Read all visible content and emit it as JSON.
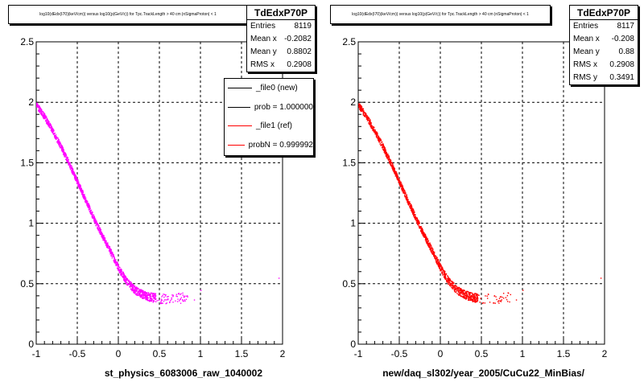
{
  "footer_text": "",
  "chart_data": [
    {
      "type": "scatter",
      "title": "log10(dEdx(I70)(keV/cm)) versus log10(p(GeV/c)) for Tpc.TrackLength > 40 cm |nSigmaProton| < 1",
      "xlabel": "st_physics_6083006_raw_1040002",
      "ylabel": "",
      "xlim": [
        -1,
        2
      ],
      "ylim": [
        0,
        2.5
      ],
      "x_ticks": [
        "-1",
        "-0.5",
        "0",
        "0.5",
        "1",
        "1.5",
        "2"
      ],
      "y_ticks": [
        "0",
        "0.5",
        "1",
        "1.5",
        "2",
        "2.5"
      ],
      "grid": true,
      "marker_color": "#ff00ff",
      "band": {
        "x": [
          -1.0,
          -0.9,
          -0.8,
          -0.7,
          -0.6,
          -0.5,
          -0.4,
          -0.3,
          -0.2,
          -0.1,
          0.0,
          0.1,
          0.2,
          0.3,
          0.4,
          0.5,
          0.6,
          0.7,
          0.85
        ],
        "y": [
          1.98,
          1.88,
          1.76,
          1.63,
          1.49,
          1.34,
          1.19,
          1.04,
          0.9,
          0.77,
          0.63,
          0.52,
          0.45,
          0.41,
          0.39,
          0.38,
          0.38,
          0.38,
          0.39
        ]
      },
      "outliers": [
        [
          1.0,
          0.45
        ],
        [
          1.95,
          0.55
        ],
        [
          0.92,
          0.37
        ],
        [
          0.78,
          0.41
        ]
      ],
      "stats": {
        "name": "TdEdxP70P",
        "rows": [
          {
            "label": "Entries",
            "value": "8119"
          },
          {
            "label": "Mean x",
            "value": "-0.2082"
          },
          {
            "label": "Mean y",
            "value": "0.8802"
          },
          {
            "label": "RMS x",
            "value": "0.2908"
          }
        ]
      },
      "legend": {
        "placement": "top-right",
        "entries": [
          {
            "label": "_file0 (new)",
            "color": "#000000"
          },
          {
            "label": "prob = 1.000000",
            "color": "#000000"
          },
          {
            "label": "_file1 (ref)",
            "color": "#ff0000"
          },
          {
            "label": "probN = 0.999992",
            "color": "#ff0000"
          }
        ]
      }
    },
    {
      "type": "scatter",
      "title": "log10(dEdx(I70)(keV/cm)) versus log10(p(GeV/c)) for Tpc.TrackLength > 40 cm |nSigmaProton| < 1",
      "xlabel": "new/daq_sl302/year_2005/CuCu22_MinBias/",
      "ylabel": "",
      "xlim": [
        -1,
        2
      ],
      "ylim": [
        0,
        2.5
      ],
      "x_ticks": [
        "-1",
        "-0.5",
        "0",
        "0.5",
        "1",
        "1.5",
        "2"
      ],
      "y_ticks": [
        "0",
        "0.5",
        "1",
        "1.5",
        "2",
        "2.5"
      ],
      "grid": true,
      "marker_color": "#ff0000",
      "band": {
        "x": [
          -1.0,
          -0.9,
          -0.8,
          -0.7,
          -0.6,
          -0.5,
          -0.4,
          -0.3,
          -0.2,
          -0.1,
          0.0,
          0.1,
          0.2,
          0.3,
          0.4,
          0.5,
          0.6,
          0.7,
          0.85
        ],
        "y": [
          1.98,
          1.88,
          1.76,
          1.63,
          1.49,
          1.34,
          1.19,
          1.04,
          0.9,
          0.77,
          0.63,
          0.52,
          0.45,
          0.41,
          0.39,
          0.38,
          0.38,
          0.38,
          0.39
        ]
      },
      "outliers": [
        [
          1.95,
          0.55
        ],
        [
          0.92,
          0.37
        ],
        [
          1.0,
          0.45
        ]
      ],
      "stats": {
        "name": "TdEdxP70P",
        "rows": [
          {
            "label": "Entries",
            "value": "8117"
          },
          {
            "label": "Mean x",
            "value": "-0.208"
          },
          {
            "label": "Mean y",
            "value": "0.88"
          },
          {
            "label": "RMS x",
            "value": "0.2908"
          },
          {
            "label": "RMS y",
            "value": "0.3491"
          }
        ]
      }
    }
  ]
}
